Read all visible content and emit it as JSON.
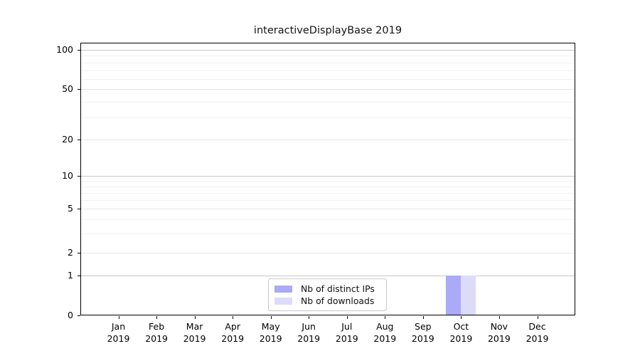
{
  "chart_data": {
    "type": "bar",
    "title": "interactiveDisplayBase 2019",
    "year_label": "2019",
    "categories": [
      "Jan",
      "Feb",
      "Mar",
      "Apr",
      "May",
      "Jun",
      "Jul",
      "Aug",
      "Sep",
      "Oct",
      "Nov",
      "Dec"
    ],
    "series": [
      {
        "name": "Nb of distinct IPs",
        "color": "#aaaaf7",
        "values": [
          0,
          0,
          0,
          0,
          0,
          0,
          0,
          0,
          0,
          1,
          0,
          0
        ]
      },
      {
        "name": "Nb of downloads",
        "color": "#dcdcf9",
        "values": [
          0,
          0,
          0,
          0,
          0,
          0,
          0,
          0,
          0,
          1,
          0,
          0
        ]
      }
    ],
    "yaxis": {
      "scale": "symlog",
      "ticks": [
        0,
        1,
        2,
        5,
        10,
        20,
        50,
        100
      ],
      "minor_ticks": [
        3,
        4,
        6,
        7,
        8,
        9,
        30,
        40,
        60,
        70,
        80,
        90
      ],
      "range_top_approx": 112
    },
    "xlabel": "",
    "ylabel": "",
    "grid": true,
    "legend": {
      "position": "lower center",
      "items": [
        "Nb of distinct IPs",
        "Nb of downloads"
      ]
    }
  }
}
